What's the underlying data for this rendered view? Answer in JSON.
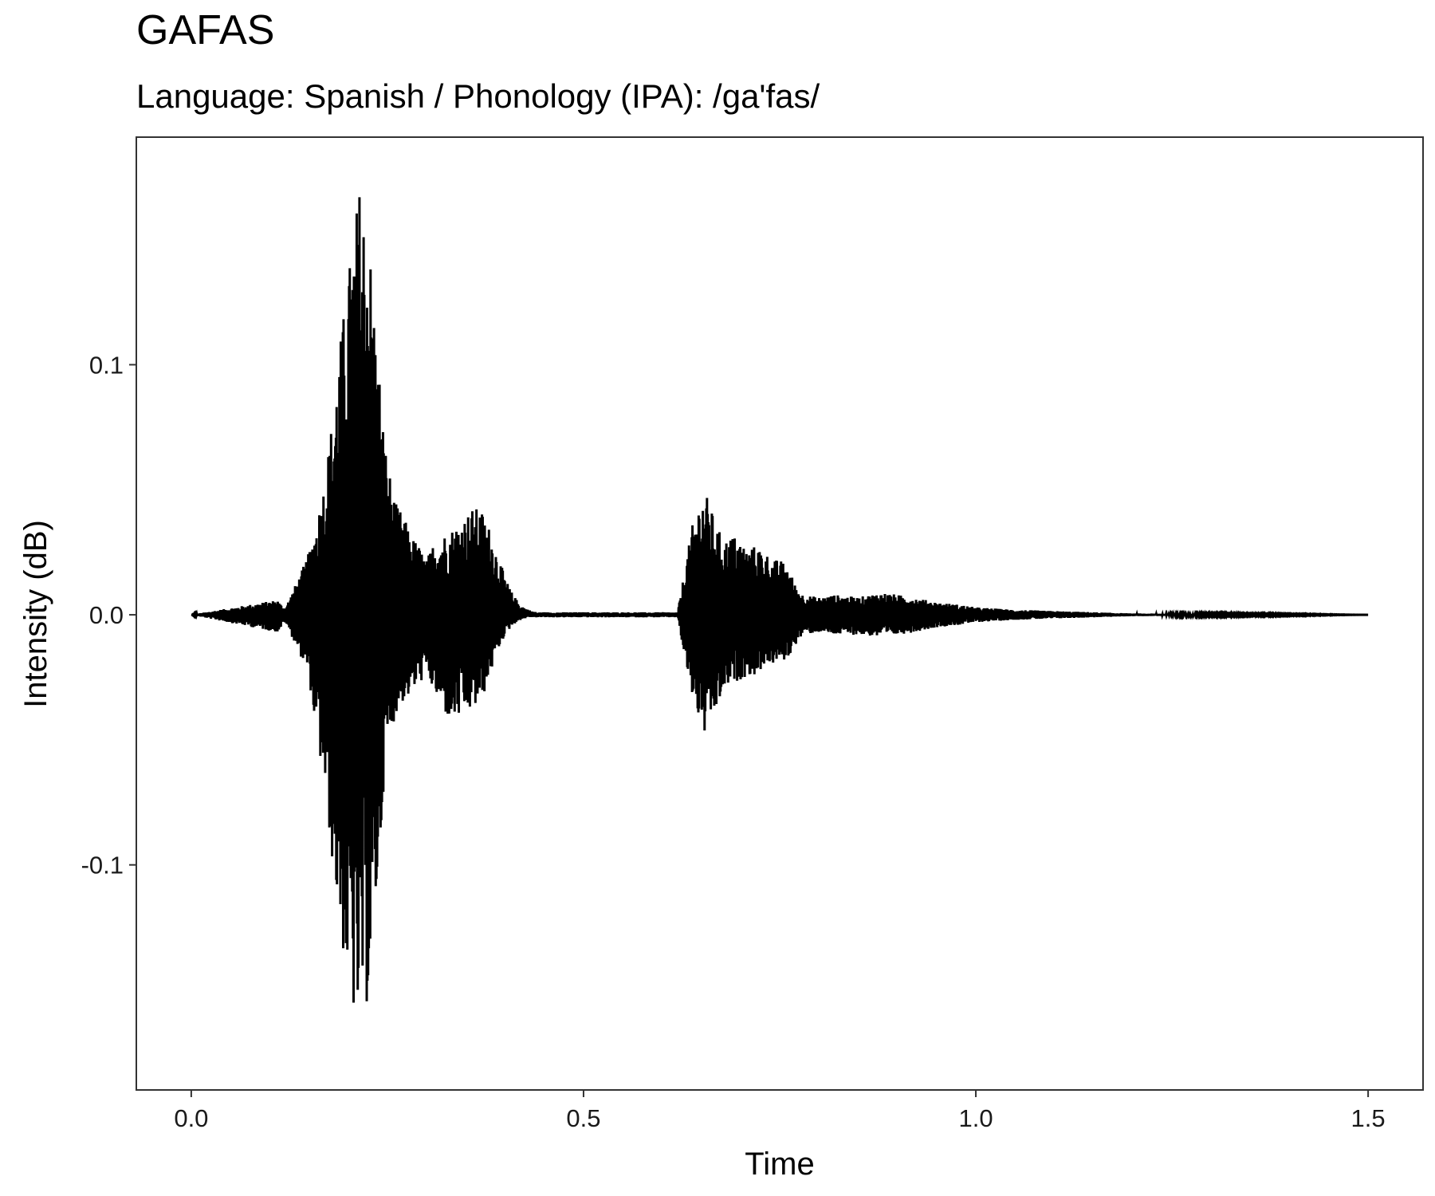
{
  "chart_data": {
    "type": "line",
    "title": "GAFAS",
    "subtitle": "Language: Spanish / Phonology (IPA): /ga'fas/",
    "xlabel": "Time",
    "ylabel": "Intensity (dB)",
    "xlim": [
      -0.07,
      1.57
    ],
    "ylim": [
      -0.19,
      0.191
    ],
    "x_ticks": [
      0.0,
      0.5,
      1.0,
      1.5
    ],
    "x_tick_labels": [
      "0.0",
      "0.5",
      "1.0",
      "1.5"
    ],
    "y_ticks": [
      0.1,
      0.0,
      -0.1
    ],
    "y_tick_labels": [
      "0.1",
      "0.0",
      "-0.1"
    ],
    "grid": false,
    "legend": "none",
    "line_color": "#000000",
    "series": [
      {
        "x": [
          0.0,
          0.11,
          0.115,
          0.12,
          0.13,
          0.14,
          0.15,
          0.16,
          0.17,
          0.18,
          0.19,
          0.2,
          0.205,
          0.21,
          0.215,
          0.22,
          0.225,
          0.23,
          0.235,
          0.24,
          0.245,
          0.25,
          0.26,
          0.27,
          0.28,
          0.29,
          0.3,
          0.31,
          0.32,
          0.33,
          0.34,
          0.35,
          0.36,
          0.37,
          0.38,
          0.39,
          0.4,
          0.41,
          0.42,
          0.43,
          0.44,
          0.5,
          0.62,
          0.63,
          0.64,
          0.65,
          0.655,
          0.66,
          0.67,
          0.68,
          0.69,
          0.7,
          0.71,
          0.72,
          0.73,
          0.74,
          0.75,
          0.76,
          0.77,
          0.78,
          0.8,
          0.82,
          0.85,
          0.88,
          0.9,
          0.92,
          0.95,
          0.98,
          1.0,
          1.05,
          1.1,
          1.15,
          1.2,
          1.3,
          1.4,
          1.5
        ],
        "y_max": [
          0.0,
          0.006,
          0.004,
          0.003,
          0.01,
          0.017,
          0.025,
          0.038,
          0.055,
          0.08,
          0.11,
          0.136,
          0.15,
          0.162,
          0.174,
          0.165,
          0.158,
          0.14,
          0.115,
          0.098,
          0.075,
          0.062,
          0.045,
          0.04,
          0.032,
          0.028,
          0.022,
          0.03,
          0.032,
          0.034,
          0.037,
          0.04,
          0.043,
          0.042,
          0.035,
          0.025,
          0.015,
          0.008,
          0.004,
          0.002,
          0.001,
          0.001,
          0.001,
          0.02,
          0.038,
          0.048,
          0.049,
          0.045,
          0.035,
          0.03,
          0.032,
          0.03,
          0.026,
          0.028,
          0.026,
          0.022,
          0.022,
          0.02,
          0.012,
          0.008,
          0.007,
          0.008,
          0.007,
          0.009,
          0.008,
          0.007,
          0.005,
          0.004,
          0.003,
          0.002,
          0.0015,
          0.001,
          0.0005,
          0.0003,
          0.0002,
          0.0
        ],
        "y_min": [
          0.0,
          -0.007,
          -0.005,
          -0.003,
          -0.01,
          -0.017,
          -0.025,
          -0.05,
          -0.07,
          -0.1,
          -0.128,
          -0.15,
          -0.155,
          -0.172,
          -0.16,
          -0.158,
          -0.156,
          -0.14,
          -0.12,
          -0.1,
          -0.07,
          -0.055,
          -0.04,
          -0.035,
          -0.032,
          -0.028,
          -0.024,
          -0.032,
          -0.038,
          -0.043,
          -0.042,
          -0.04,
          -0.038,
          -0.035,
          -0.025,
          -0.015,
          -0.008,
          -0.004,
          -0.002,
          -0.001,
          -0.001,
          -0.001,
          -0.001,
          -0.02,
          -0.035,
          -0.045,
          -0.049,
          -0.045,
          -0.038,
          -0.03,
          -0.028,
          -0.026,
          -0.024,
          -0.025,
          -0.02,
          -0.02,
          -0.019,
          -0.018,
          -0.012,
          -0.008,
          -0.007,
          -0.008,
          -0.008,
          -0.009,
          -0.008,
          -0.007,
          -0.005,
          -0.004,
          -0.003,
          -0.002,
          -0.0015,
          -0.001,
          -0.0005,
          -0.0003,
          -0.0002,
          0.0
        ]
      }
    ]
  }
}
